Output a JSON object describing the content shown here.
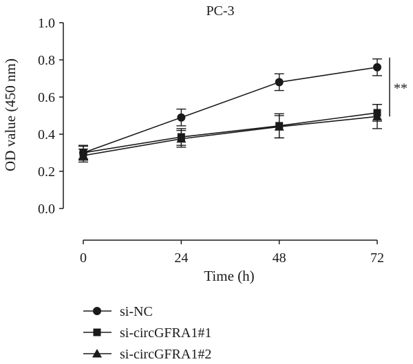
{
  "chart_data": {
    "type": "line",
    "title": "PC-3",
    "xlabel": "Time (h)",
    "ylabel": "OD value (450 nm)",
    "x": [
      0,
      24,
      48,
      72
    ],
    "xticks": [
      "0",
      "24",
      "48",
      "72"
    ],
    "yticks": [
      "0.0",
      "0.2",
      "0.4",
      "0.6",
      "0.8",
      "1.0"
    ],
    "xlim": [
      0,
      72
    ],
    "ylim": [
      0,
      1.0
    ],
    "grid": false,
    "legend_position": "bottom-left",
    "series": [
      {
        "name": "si-NC",
        "marker": "circle",
        "values": [
          0.3,
          0.49,
          0.68,
          0.76
        ],
        "errors": [
          0.04,
          0.045,
          0.045,
          0.045
        ]
      },
      {
        "name": "si-circGFRA1#1",
        "marker": "square",
        "values": [
          0.3,
          0.385,
          0.445,
          0.515
        ],
        "errors": [
          0.035,
          0.045,
          0.065,
          0.045
        ]
      },
      {
        "name": "si-circGFRA1#2",
        "marker": "triangle",
        "values": [
          0.285,
          0.375,
          0.44,
          0.495
        ],
        "errors": [
          0.035,
          0.045,
          0.06,
          0.065
        ]
      }
    ],
    "annotation": {
      "text": "**",
      "spans_series": [
        "si-NC",
        "si-circGFRA1#2"
      ],
      "at_x": 72
    },
    "colors": {
      "line": "#1a1a1a",
      "background": "#ffffff"
    }
  }
}
